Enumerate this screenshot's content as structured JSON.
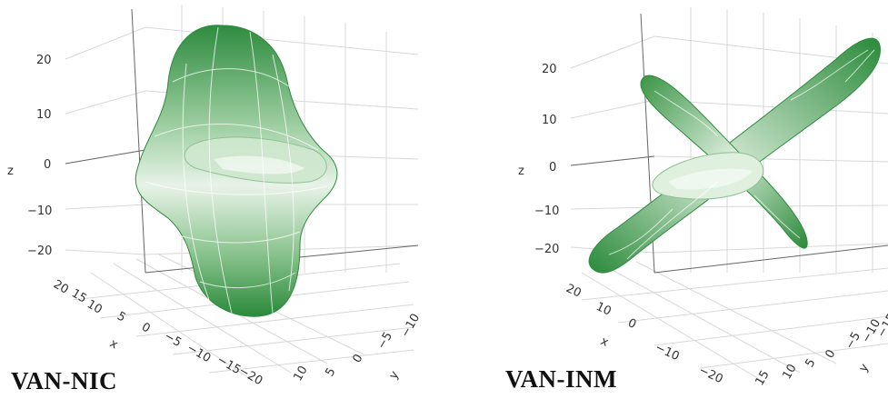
{
  "panels": [
    {
      "title": "VAN-NIC",
      "z_label": "z",
      "x_label": "x",
      "y_label": "y",
      "z_ticks": [
        "20",
        "10",
        "0",
        "−10",
        "−20"
      ],
      "x_ticks": [
        "20",
        "15",
        "10",
        "5",
        "0",
        "−5",
        "−10",
        "−15",
        "−20"
      ],
      "y_ticks": [
        "10",
        "5",
        "0",
        "−5",
        "−10"
      ],
      "surface_color": "#2e8b3e"
    },
    {
      "title": "VAN-INM",
      "z_label": "z",
      "x_label": "x",
      "y_label": "y",
      "z_ticks": [
        "20",
        "10",
        "0",
        "−10",
        "−20"
      ],
      "x_ticks": [
        "20",
        "10",
        "0",
        "−10",
        "−20"
      ],
      "y_ticks": [
        "15",
        "10",
        "5",
        "0",
        "−5",
        "−10",
        "−15"
      ],
      "surface_color": "#2e8b3e"
    }
  ]
}
